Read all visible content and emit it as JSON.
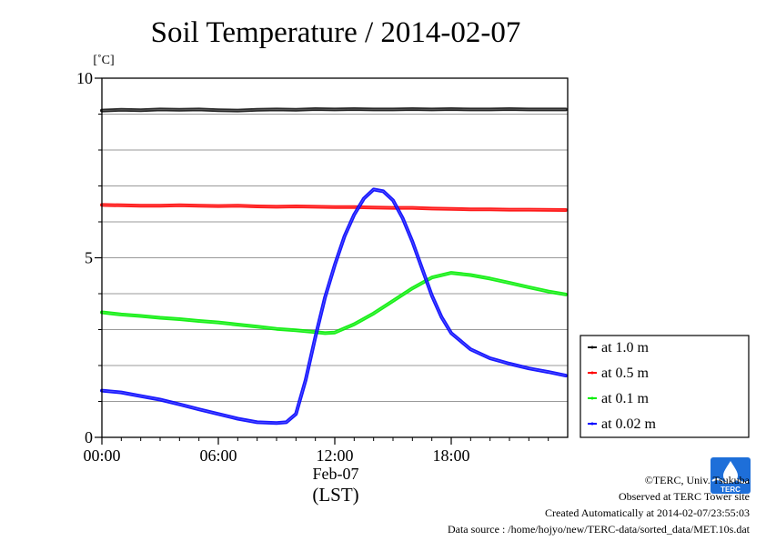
{
  "chart_data": {
    "type": "line",
    "title": "Soil Temperature / 2014-02-07",
    "ylabel": "[˚C]",
    "ylim": [
      0,
      10
    ],
    "yticks": [
      "0",
      "5",
      "10"
    ],
    "xlim": [
      0,
      24
    ],
    "xticks": [
      "00:00",
      "06:00",
      "12:00",
      "18:00"
    ],
    "xdate_label": "Feb-07",
    "xtimezone_label": "(LST)",
    "grid": true,
    "legend_position": "right",
    "series": [
      {
        "name": "at 1.0 m",
        "color": "#111111",
        "x": [
          0,
          1,
          2,
          3,
          4,
          5,
          6,
          7,
          8,
          9,
          10,
          11,
          12,
          13,
          14,
          15,
          16,
          17,
          18,
          19,
          20,
          21,
          22,
          23.9
        ],
        "y": [
          9.1,
          9.12,
          9.11,
          9.13,
          9.12,
          9.13,
          9.11,
          9.1,
          9.12,
          9.13,
          9.12,
          9.14,
          9.13,
          9.14,
          9.13,
          9.13,
          9.14,
          9.13,
          9.14,
          9.13,
          9.13,
          9.14,
          9.13,
          9.13
        ]
      },
      {
        "name": "at 0.5 m",
        "color": "#ff0000",
        "x": [
          0,
          1,
          2,
          3,
          4,
          5,
          6,
          7,
          8,
          9,
          10,
          11,
          12,
          13,
          14,
          15,
          16,
          17,
          18,
          19,
          20,
          21,
          22,
          23.9
        ],
        "y": [
          6.47,
          6.46,
          6.45,
          6.45,
          6.46,
          6.45,
          6.44,
          6.45,
          6.43,
          6.42,
          6.43,
          6.42,
          6.41,
          6.41,
          6.4,
          6.39,
          6.39,
          6.37,
          6.36,
          6.35,
          6.35,
          6.34,
          6.34,
          6.33
        ]
      },
      {
        "name": "at 0.1 m",
        "color": "#00ee00",
        "x": [
          0,
          1,
          2,
          3,
          4,
          5,
          6,
          7,
          8,
          9,
          10,
          11,
          11.5,
          12,
          13,
          14,
          15,
          16,
          17,
          18,
          19,
          20,
          21,
          22,
          23,
          23.9
        ],
        "y": [
          3.48,
          3.42,
          3.38,
          3.33,
          3.29,
          3.24,
          3.2,
          3.14,
          3.08,
          3.02,
          2.98,
          2.93,
          2.9,
          2.92,
          3.15,
          3.45,
          3.8,
          4.15,
          4.45,
          4.58,
          4.52,
          4.42,
          4.3,
          4.18,
          4.06,
          3.98
        ]
      },
      {
        "name": "at 0.02 m",
        "color": "#0000ff",
        "x": [
          0,
          1,
          2,
          3,
          4,
          5,
          6,
          7,
          8,
          9,
          9.5,
          10,
          10.5,
          11,
          11.5,
          12,
          12.5,
          13,
          13.5,
          14,
          14.5,
          15,
          15.5,
          16,
          16.5,
          17,
          17.5,
          18,
          19,
          20,
          21,
          22,
          23,
          23.9
        ],
        "y": [
          1.3,
          1.25,
          1.15,
          1.05,
          0.92,
          0.78,
          0.65,
          0.52,
          0.42,
          0.4,
          0.42,
          0.65,
          1.6,
          2.8,
          3.9,
          4.8,
          5.6,
          6.2,
          6.65,
          6.9,
          6.85,
          6.6,
          6.1,
          5.45,
          4.7,
          3.95,
          3.35,
          2.9,
          2.45,
          2.2,
          2.05,
          1.92,
          1.82,
          1.72
        ]
      }
    ]
  },
  "footer": {
    "copyright": "©TERC, Univ. Tsukuba",
    "observed": "Observed at TERC Tower site",
    "created": "Created Automatically at 2014-02-07/23:55:03",
    "source": "Data source : /home/hojyo/new/TERC-data/sorted_data/MET.10s.dat",
    "logo_text": "TERC"
  }
}
